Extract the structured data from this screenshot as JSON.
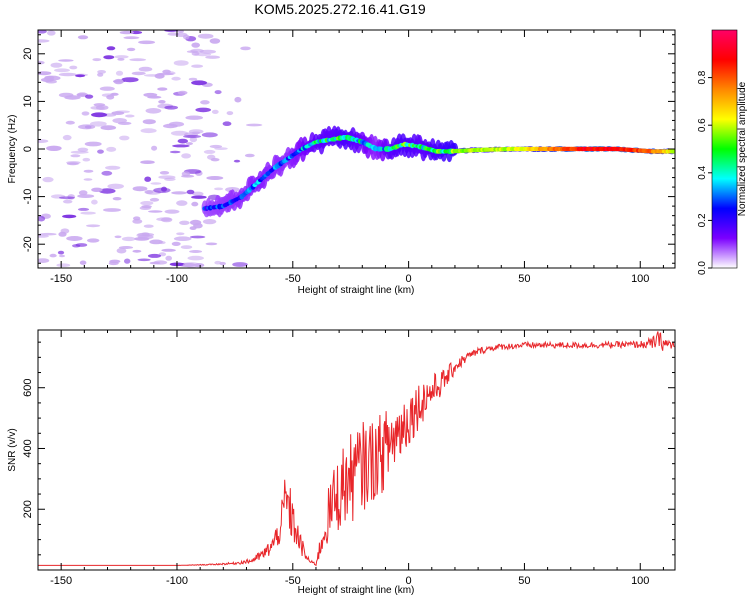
{
  "title": "KOM5.2025.272.16.41.G19",
  "colors": {
    "trace": "#e8262a",
    "speckle": "#c9a8f0",
    "speckle_dark": "#7a2ee0"
  },
  "chart_data": [
    {
      "type": "heatmap",
      "name": "spectrogram",
      "title": "KOM5.2025.272.16.41.G19",
      "xlabel": "Height of straight line (km)",
      "ylabel": "Frequency (Hz)",
      "xlim": [
        -160,
        115
      ],
      "ylim": [
        -25,
        25
      ],
      "xticks": [
        -150,
        -100,
        -50,
        0,
        50,
        100
      ],
      "yticks": [
        -20,
        -10,
        0,
        10,
        20
      ],
      "colorbar": {
        "label": "Normalized spectral amplitude",
        "range": [
          0,
          1
        ],
        "ticks": [
          0.0,
          0.2,
          0.4,
          0.6,
          0.8
        ],
        "colormap": [
          "#ffffff",
          "#7b00ff",
          "#0000ff",
          "#00ffff",
          "#00ff00",
          "#ffff00",
          "#ff8800",
          "#ff0000",
          "#ff0066"
        ]
      },
      "ridge": {
        "x": [
          -88,
          -80,
          -72,
          -65,
          -58,
          -52,
          -46,
          -40,
          -33,
          -27,
          -20,
          -14,
          -8,
          -2,
          5,
          12,
          18,
          30,
          45,
          60,
          75,
          90,
          105,
          115
        ],
        "freq": [
          -12.5,
          -12,
          -10,
          -7,
          -4,
          -2,
          0,
          1.5,
          2,
          2.5,
          1.5,
          0,
          0,
          1,
          0.5,
          -0.5,
          -0.5,
          -0.2,
          0,
          0,
          0,
          0,
          -0.5,
          -0.5
        ],
        "amplitude": [
          0.25,
          0.28,
          0.3,
          0.32,
          0.3,
          0.3,
          0.35,
          0.45,
          0.45,
          0.5,
          0.4,
          0.3,
          0.45,
          0.5,
          0.45,
          0.5,
          0.55,
          0.6,
          0.6,
          0.75,
          0.9,
          0.9,
          0.8,
          0.6
        ]
      }
    },
    {
      "type": "line",
      "name": "snr",
      "xlabel": "Height of straight line (km)",
      "ylabel": "SNR (v/v)",
      "xlim": [
        -160,
        115
      ],
      "ylim": [
        0,
        790
      ],
      "xticks": [
        -150,
        -100,
        -50,
        0,
        50,
        100
      ],
      "yticks": [
        200,
        400,
        600
      ],
      "series": [
        {
          "name": "SNR",
          "x": [
            -160,
            -140,
            -120,
            -100,
            -85,
            -75,
            -68,
            -62,
            -58,
            -55,
            -53,
            -50,
            -47,
            -44,
            -42,
            -40,
            -38,
            -35,
            -32,
            -28,
            -24,
            -20,
            -16,
            -12,
            -8,
            -4,
            0,
            4,
            8,
            12,
            16,
            20,
            25,
            30,
            35,
            40,
            50,
            60,
            70,
            80,
            90,
            100,
            105,
            108,
            110,
            115
          ],
          "y": [
            15,
            15,
            15,
            15,
            18,
            22,
            30,
            55,
            90,
            150,
            230,
            160,
            90,
            40,
            25,
            20,
            80,
            170,
            230,
            280,
            310,
            340,
            360,
            380,
            420,
            460,
            500,
            540,
            575,
            600,
            630,
            670,
            700,
            720,
            730,
            735,
            740,
            740,
            740,
            740,
            742,
            742,
            745,
            760,
            745,
            740
          ],
          "noise": [
            0,
            0,
            0,
            0,
            2,
            4,
            8,
            20,
            35,
            60,
            120,
            70,
            40,
            15,
            6,
            6,
            40,
            90,
            120,
            140,
            150,
            150,
            140,
            135,
            125,
            110,
            95,
            80,
            65,
            50,
            35,
            25,
            15,
            12,
            10,
            10,
            10,
            10,
            10,
            10,
            10,
            12,
            20,
            30,
            25,
            15
          ]
        }
      ]
    }
  ]
}
